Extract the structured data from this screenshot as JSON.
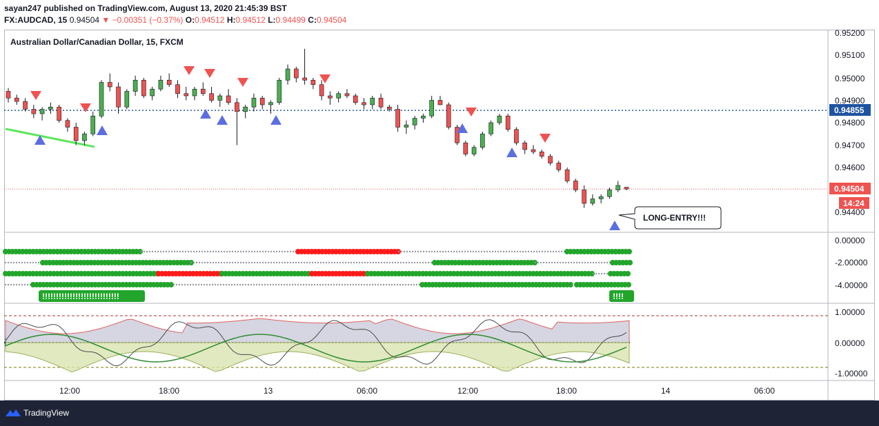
{
  "header": {
    "line1": "sayan247 published on TradingView.com, August 13, 2020 21:45:39 BST",
    "symbol": "FX:AUDCAD, 15",
    "last": "0.94504",
    "change": "▼ −0.00351 (−0.37%)",
    "o_label": "O:",
    "o_val": "0.94512",
    "h_label": "H:",
    "h_val": "0.94512",
    "l_label": "L:",
    "l_val": "0.94499",
    "c_label": "C:",
    "c_val": "0.94504"
  },
  "chart_title": "Australian Dollar/Canadian Dollar, 15, FXCM",
  "annotation": "LONG-ENTRY!!!",
  "price_axis": [
    "0.95200",
    "0.95100",
    "0.95000",
    "0.94900",
    "0.94800",
    "0.94700",
    "0.94600",
    "0.94400"
  ],
  "price_tags": {
    "level": "0.94855",
    "last": "0.94504",
    "countdown": "14:24"
  },
  "osc1_axis": [
    "0.00000",
    "-2.00000",
    "-4.00000"
  ],
  "osc1_labels": [
    "!!!!!!!!!!!!!!!!!!!!!!!!!!!!",
    "!!!!"
  ],
  "osc2_axis": [
    "1.00000",
    "0.00000",
    "-1.00000"
  ],
  "time_axis": [
    "12:00",
    "18:00",
    "13",
    "06:00",
    "12:00",
    "18:00",
    "14",
    "06:00"
  ],
  "footer": {
    "brand": "TradingView"
  },
  "colors": {
    "up": "#4caf50",
    "down": "#ef5350",
    "bg": "#ffffff",
    "footer": "#1e2436",
    "level": "#1e53a0",
    "arrow_up": "#5b6ee1",
    "arrow_down": "#ef5350"
  },
  "chart_data": {
    "type": "candlestick",
    "symbol": "FX:AUDCAD",
    "interval": "15",
    "ylim": [
      0.9434,
      0.9522
    ],
    "yticks": [
      0.952,
      0.951,
      0.95,
      0.949,
      0.948,
      0.947,
      0.946,
      0.944
    ],
    "level_line": 0.94855,
    "last_price": 0.94504,
    "ohlc": [
      [
        0.9494,
        0.94955,
        0.9489,
        0.9491
      ],
      [
        0.9491,
        0.94925,
        0.9488,
        0.94895
      ],
      [
        0.94895,
        0.9491,
        0.9485,
        0.9486
      ],
      [
        0.9486,
        0.9488,
        0.9482,
        0.9484
      ],
      [
        0.9484,
        0.9487,
        0.9481,
        0.9486
      ],
      [
        0.9486,
        0.9489,
        0.9484,
        0.9487
      ],
      [
        0.9487,
        0.9488,
        0.948,
        0.9481
      ],
      [
        0.9481,
        0.9482,
        0.9476,
        0.9478
      ],
      [
        0.9478,
        0.948,
        0.947,
        0.9472
      ],
      [
        0.9472,
        0.9476,
        0.947,
        0.9475
      ],
      [
        0.9475,
        0.9485,
        0.9474,
        0.9483
      ],
      [
        0.9483,
        0.9499,
        0.9482,
        0.9498
      ],
      [
        0.9498,
        0.9502,
        0.9494,
        0.9496
      ],
      [
        0.9496,
        0.9498,
        0.9484,
        0.9487
      ],
      [
        0.9487,
        0.9495,
        0.9486,
        0.9494
      ],
      [
        0.9494,
        0.9501,
        0.9492,
        0.9499
      ],
      [
        0.9499,
        0.95,
        0.9491,
        0.9492
      ],
      [
        0.9492,
        0.9496,
        0.949,
        0.9495
      ],
      [
        0.9495,
        0.9501,
        0.9494,
        0.9499
      ],
      [
        0.9499,
        0.9502,
        0.9496,
        0.9497
      ],
      [
        0.9497,
        0.9499,
        0.9491,
        0.9493
      ],
      [
        0.9493,
        0.9496,
        0.949,
        0.9492
      ],
      [
        0.9492,
        0.9496,
        0.949,
        0.9495
      ],
      [
        0.9495,
        0.9498,
        0.9492,
        0.9493
      ],
      [
        0.9493,
        0.9496,
        0.9489,
        0.949
      ],
      [
        0.949,
        0.9493,
        0.9487,
        0.9492
      ],
      [
        0.9492,
        0.9495,
        0.9488,
        0.9489
      ],
      [
        0.9489,
        0.9491,
        0.947,
        0.9485
      ],
      [
        0.9485,
        0.9488,
        0.9482,
        0.9487
      ],
      [
        0.9487,
        0.9493,
        0.9485,
        0.9491
      ],
      [
        0.9491,
        0.9492,
        0.9486,
        0.9488
      ],
      [
        0.9488,
        0.949,
        0.9484,
        0.9489
      ],
      [
        0.9489,
        0.95,
        0.9488,
        0.9499
      ],
      [
        0.9499,
        0.9506,
        0.9497,
        0.9504
      ],
      [
        0.9504,
        0.9505,
        0.9498,
        0.95
      ],
      [
        0.95,
        0.9513,
        0.9497,
        0.9499
      ],
      [
        0.9499,
        0.95,
        0.9495,
        0.9497
      ],
      [
        0.9497,
        0.9499,
        0.949,
        0.9492
      ],
      [
        0.9492,
        0.9494,
        0.9488,
        0.9491
      ],
      [
        0.9491,
        0.9494,
        0.9489,
        0.9493
      ],
      [
        0.9493,
        0.9495,
        0.9491,
        0.9492
      ],
      [
        0.9492,
        0.9493,
        0.9488,
        0.9489
      ],
      [
        0.9489,
        0.9491,
        0.9486,
        0.9488
      ],
      [
        0.9488,
        0.9492,
        0.9486,
        0.9491
      ],
      [
        0.9491,
        0.9493,
        0.9486,
        0.9487
      ],
      [
        0.9487,
        0.9488,
        0.9485,
        0.9486
      ],
      [
        0.9486,
        0.9488,
        0.9476,
        0.9478
      ],
      [
        0.9478,
        0.9481,
        0.9475,
        0.9479
      ],
      [
        0.9479,
        0.9483,
        0.9477,
        0.9482
      ],
      [
        0.9482,
        0.9484,
        0.948,
        0.9483
      ],
      [
        0.9483,
        0.9492,
        0.9482,
        0.949
      ],
      [
        0.949,
        0.9492,
        0.9488,
        0.9488
      ],
      [
        0.9488,
        0.9489,
        0.9477,
        0.9478
      ],
      [
        0.9478,
        0.9479,
        0.947,
        0.9471
      ],
      [
        0.9471,
        0.9472,
        0.9465,
        0.9466
      ],
      [
        0.9466,
        0.947,
        0.9465,
        0.9469
      ],
      [
        0.9469,
        0.9476,
        0.9468,
        0.9475
      ],
      [
        0.9475,
        0.9481,
        0.9474,
        0.948
      ],
      [
        0.948,
        0.9484,
        0.9479,
        0.9483
      ],
      [
        0.9483,
        0.9484,
        0.9476,
        0.9477
      ],
      [
        0.9477,
        0.9478,
        0.947,
        0.9471
      ],
      [
        0.9471,
        0.9472,
        0.9466,
        0.9468
      ],
      [
        0.9468,
        0.947,
        0.9466,
        0.9467
      ],
      [
        0.9467,
        0.9468,
        0.9464,
        0.9465
      ],
      [
        0.9465,
        0.9466,
        0.9461,
        0.9462
      ],
      [
        0.9462,
        0.9463,
        0.9458,
        0.9459
      ],
      [
        0.9459,
        0.946,
        0.9453,
        0.9454
      ],
      [
        0.9454,
        0.9455,
        0.9449,
        0.945
      ],
      [
        0.945,
        0.9452,
        0.9442,
        0.9444
      ],
      [
        0.9444,
        0.9448,
        0.9443,
        0.9446
      ],
      [
        0.9446,
        0.9448,
        0.9444,
        0.9447
      ],
      [
        0.9447,
        0.9451,
        0.9446,
        0.945
      ],
      [
        0.945,
        0.9454,
        0.9449,
        0.9452
      ],
      [
        0.94512,
        0.94512,
        0.94499,
        0.94504
      ]
    ]
  }
}
